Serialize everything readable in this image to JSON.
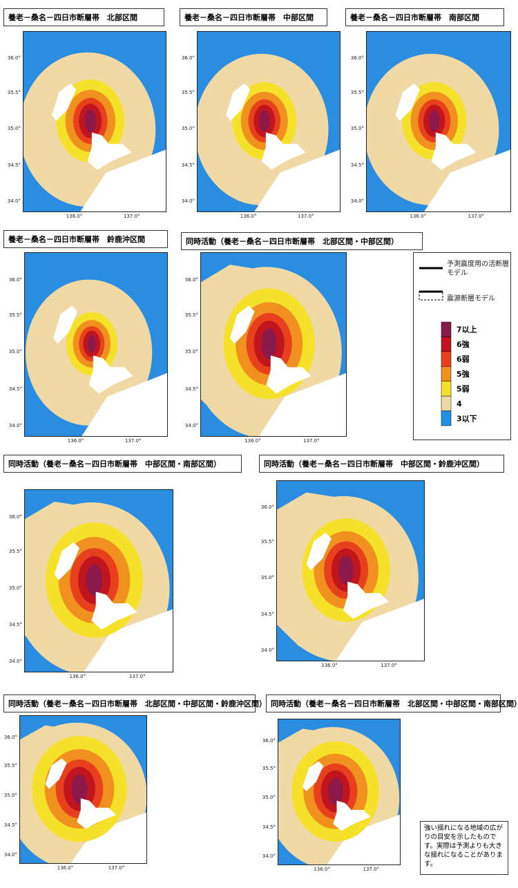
{
  "panels": [
    {
      "title": "養老－桑名－四日市断層帯　北部区間"
    },
    {
      "title": "養老－桑名－四日市断層帯　中部区間"
    },
    {
      "title": "養老－桑名－四日市断層帯　南部区間"
    },
    {
      "title": "養老－桑名－四日市断層帯　鈴鹿沖区間"
    },
    {
      "title": "同時活動（養老－桑名－四日市断層帯　北部区間・中部区間）"
    },
    {
      "title": "同時活動（養老－桑名－四日市断層帯　中部区間・南部区間）"
    },
    {
      "title": "同時活動（養老－桑名－四日市断層帯　中部区間・鈴鹿沖区間）"
    },
    {
      "title": "同時活動（養老－桑名－四日市断層帯　北部区間・中部区間・鈴鹿沖区間）"
    },
    {
      "title": "同時活動（養老－桑名－四日市断層帯　北部区間・中部区間・南部区間）"
    }
  ],
  "axes": {
    "y_labels": [
      "36.0°",
      "35.5°",
      "35.0°",
      "34.5°",
      "34.0°"
    ],
    "x_labels": [
      "136.0°",
      "137.0°"
    ]
  },
  "legend": {
    "fault_models": [
      "予測震度用の活断層モデル",
      "震源断層モデル"
    ],
    "intensity_scale": [
      "7以上",
      "6強",
      "6弱",
      "5強",
      "5弱",
      "4",
      "3以下"
    ]
  },
  "note": "強い揺れになる地域の広がりの目安を示したものです。実際は予測よりも大きな揺れになることがあります。"
}
